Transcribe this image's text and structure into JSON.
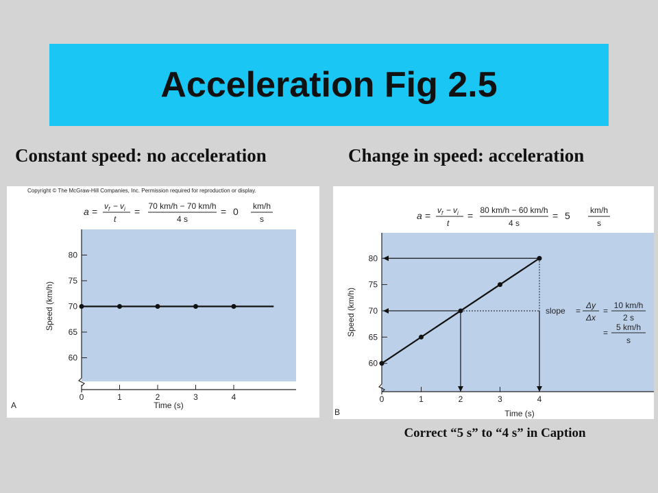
{
  "slide": {
    "title": "Acceleration Fig 2.5",
    "left_heading": "Constant speed:  no acceleration",
    "right_heading": "Change in speed:  acceleration",
    "caption": "Correct “5 s”  to “4 s” in Caption",
    "copyright": "Copyright © The McGraw-Hill Companies, Inc. Permission required for reproduction or display."
  },
  "colors": {
    "title_bg": "#1ac6f3",
    "plot_bg": "#bdd0ea",
    "slide_bg": "#d4d4d4"
  },
  "chart_data": [
    {
      "type": "line",
      "panel_label": "A",
      "xlabel": "Time (s)",
      "ylabel": "Speed (km/h)",
      "xlim": [
        0,
        5
      ],
      "ylim": [
        55,
        85
      ],
      "xticks": [
        0,
        1,
        2,
        3,
        4
      ],
      "yticks": [
        60,
        65,
        70,
        75,
        80
      ],
      "x": [
        0,
        1,
        2,
        3,
        4
      ],
      "values": [
        70,
        70,
        70,
        70,
        70
      ],
      "formula": {
        "a": "a",
        "vf": "v",
        "vf_sub": "f",
        "vi": "v",
        "vi_sub": "i",
        "t": "t",
        "num": "70 km/h − 70 km/h",
        "den": "4 s",
        "result": "0",
        "unit_num": "km/h",
        "unit_den": "s"
      }
    },
    {
      "type": "line",
      "panel_label": "B",
      "xlabel": "Time (s)",
      "ylabel": "Speed (km/h)",
      "xlim": [
        0,
        5
      ],
      "ylim": [
        55,
        85
      ],
      "xticks": [
        0,
        1,
        2,
        3,
        4
      ],
      "yticks": [
        60,
        65,
        70,
        75,
        80
      ],
      "x": [
        0,
        1,
        2,
        3,
        4
      ],
      "values": [
        60,
        65,
        70,
        75,
        80
      ],
      "formula": {
        "a": "a",
        "vf": "v",
        "vf_sub": "f",
        "vi": "v",
        "vi_sub": "i",
        "t": "t",
        "num": "80 km/h − 60 km/h",
        "den": "4 s",
        "result": "5",
        "unit_num": "km/h",
        "unit_den": "s"
      },
      "annotation": {
        "slope": "slope",
        "dy": "Δy",
        "dx": "Δx",
        "num1": "10 km/h",
        "den1": "2 s",
        "num2": "5 km/h",
        "den2": "s"
      }
    }
  ]
}
